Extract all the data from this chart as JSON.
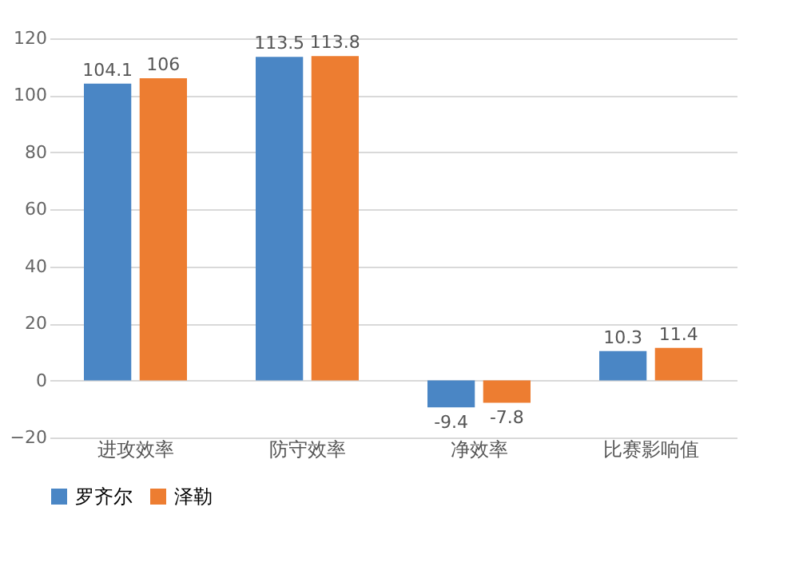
{
  "chart_data": {
    "type": "bar",
    "categories": [
      "进攻效率",
      "防守效率",
      "净效率",
      "比赛影响值"
    ],
    "series": [
      {
        "name": "罗齐尔",
        "color": "#4a86c5",
        "values": [
          104.1,
          113.5,
          -9.4,
          10.3
        ]
      },
      {
        "name": "泽勒",
        "color": "#ed7d31",
        "values": [
          106,
          113.8,
          -7.8,
          11.4
        ]
      }
    ],
    "ylim": [
      -20,
      120
    ],
    "yticks": [
      -20,
      0,
      20,
      40,
      60,
      80,
      100,
      120
    ],
    "grid": "y",
    "legend": "bottom",
    "data_labels": true
  }
}
